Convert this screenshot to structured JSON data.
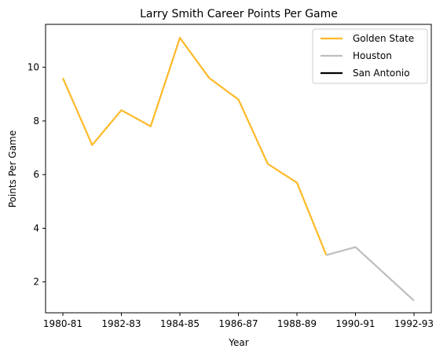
{
  "chart_data": {
    "type": "line",
    "title": "Larry Smith  Career Points Per Game",
    "xlabel": "Year",
    "ylabel": "Points Per Game",
    "categories": [
      "1980-81",
      "1981-82",
      "1982-83",
      "1983-84",
      "1984-85",
      "1985-86",
      "1986-87",
      "1987-88",
      "1988-89",
      "1989-90",
      "1990-91",
      "1991-92",
      "1992-93"
    ],
    "xticks": [
      "1980-81",
      "1982-83",
      "1984-85",
      "1986-87",
      "1988-89",
      "1990-91",
      "1992-93"
    ],
    "yticks": [
      2,
      4,
      6,
      8,
      10
    ],
    "ylim": [
      0.85,
      11.6
    ],
    "grid": false,
    "legend_position": "top-right",
    "series": [
      {
        "name": "Golden State",
        "color": "#FDB927",
        "points": [
          [
            "1980-81",
            9.6
          ],
          [
            "1981-82",
            7.1
          ],
          [
            "1982-83",
            8.4
          ],
          [
            "1983-84",
            7.8
          ],
          [
            "1984-85",
            11.1
          ],
          [
            "1985-86",
            9.6
          ],
          [
            "1986-87",
            8.8
          ],
          [
            "1987-88",
            6.4
          ],
          [
            "1988-89",
            5.7
          ],
          [
            "1989-90",
            3.0
          ]
        ]
      },
      {
        "name": "Houston",
        "color": "#BEBEBE",
        "points": [
          [
            "1989-90",
            3.0
          ],
          [
            "1990-91",
            3.3
          ],
          [
            "1992-93",
            1.3
          ]
        ]
      },
      {
        "name": "San Antonio",
        "color": "#000000",
        "points": []
      }
    ]
  }
}
